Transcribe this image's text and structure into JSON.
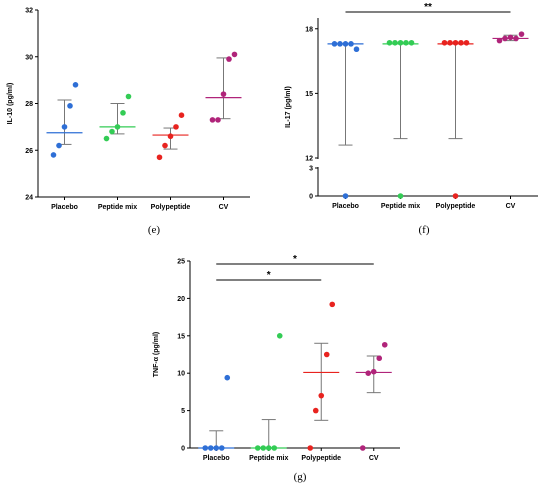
{
  "chart_data": [
    {
      "id": "e",
      "type": "scatter",
      "caption": "(e)",
      "ylabel": "IL-10 (pg/ml)",
      "ylim": [
        24,
        32
      ],
      "yticks": [
        "24",
        "26",
        "28",
        "30",
        "32"
      ],
      "categories": [
        "Placebo",
        "Peptide mix",
        "Polypeptide",
        "CV"
      ],
      "colors": [
        "#2e6fd6",
        "#33cc55",
        "#e8231f",
        "#b0247a"
      ],
      "points": [
        [
          25.8,
          26.2,
          27.0,
          27.9,
          28.8
        ],
        [
          26.5,
          26.8,
          27.0,
          27.6,
          28.3
        ],
        [
          25.7,
          26.2,
          26.6,
          27.0,
          27.5
        ],
        [
          27.3,
          27.3,
          28.4,
          29.9,
          30.1
        ]
      ],
      "center": [
        26.75,
        27.0,
        26.65,
        28.25
      ],
      "err_low": [
        26.25,
        26.7,
        26.05,
        27.35
      ],
      "err_high": [
        28.15,
        28.0,
        26.95,
        29.95
      ],
      "significance": []
    },
    {
      "id": "f",
      "type": "scatter",
      "caption": "(f)",
      "ylabel": "IL-17 (pg/ml)",
      "broken_axis": {
        "lower": [
          0,
          3
        ],
        "upper": [
          12,
          18.5
        ]
      },
      "yticks": [
        "0",
        "3",
        "12",
        "15",
        "18"
      ],
      "categories": [
        "Placebo",
        "Peptide mix",
        "Polypeptide",
        "CV"
      ],
      "colors": [
        "#2e6fd6",
        "#33cc55",
        "#e8231f",
        "#b0247a"
      ],
      "points": [
        [
          17.3,
          17.3,
          17.3,
          17.3,
          17.05
        ],
        [
          17.35,
          17.35,
          17.35,
          17.35,
          17.35
        ],
        [
          17.35,
          17.35,
          17.35,
          17.35,
          17.35
        ],
        [
          17.45,
          17.55,
          17.6,
          17.55,
          17.75
        ]
      ],
      "zero_points": [
        0,
        0,
        0,
        null
      ],
      "center": [
        17.3,
        17.3,
        17.3,
        17.55
      ],
      "err_low": [
        12.6,
        12.9,
        12.9,
        17.45
      ],
      "err_high": [
        17.3,
        17.35,
        17.35,
        17.7
      ],
      "significance": [
        {
          "from": 0,
          "to": 3,
          "label": "**"
        }
      ]
    },
    {
      "id": "g",
      "type": "scatter",
      "caption": "(g)",
      "ylabel": "TNF-α (pg/ml)",
      "ylim": [
        0,
        25
      ],
      "yticks": [
        "0",
        "5",
        "10",
        "15",
        "20",
        "25"
      ],
      "categories": [
        "Placebo",
        "Peptide mix",
        "Polypeptide",
        "CV"
      ],
      "colors": [
        "#2e6fd6",
        "#33cc55",
        "#e8231f",
        "#b0247a"
      ],
      "points": [
        [
          0,
          0,
          0,
          0,
          9.4
        ],
        [
          0,
          0,
          0,
          0,
          15.0
        ],
        [
          0,
          5.0,
          7.0,
          12.5,
          19.2
        ],
        [
          0,
          10.0,
          10.2,
          12.0,
          13.8
        ]
      ],
      "center": [
        0,
        0,
        10.1,
        10.1
      ],
      "err_low": [
        0,
        0,
        3.7,
        7.4
      ],
      "err_high": [
        2.3,
        3.8,
        14.0,
        12.3
      ],
      "significance": [
        {
          "from": 0,
          "to": 3,
          "label": "*"
        },
        {
          "from": 0,
          "to": 2,
          "label": "*"
        }
      ]
    }
  ]
}
